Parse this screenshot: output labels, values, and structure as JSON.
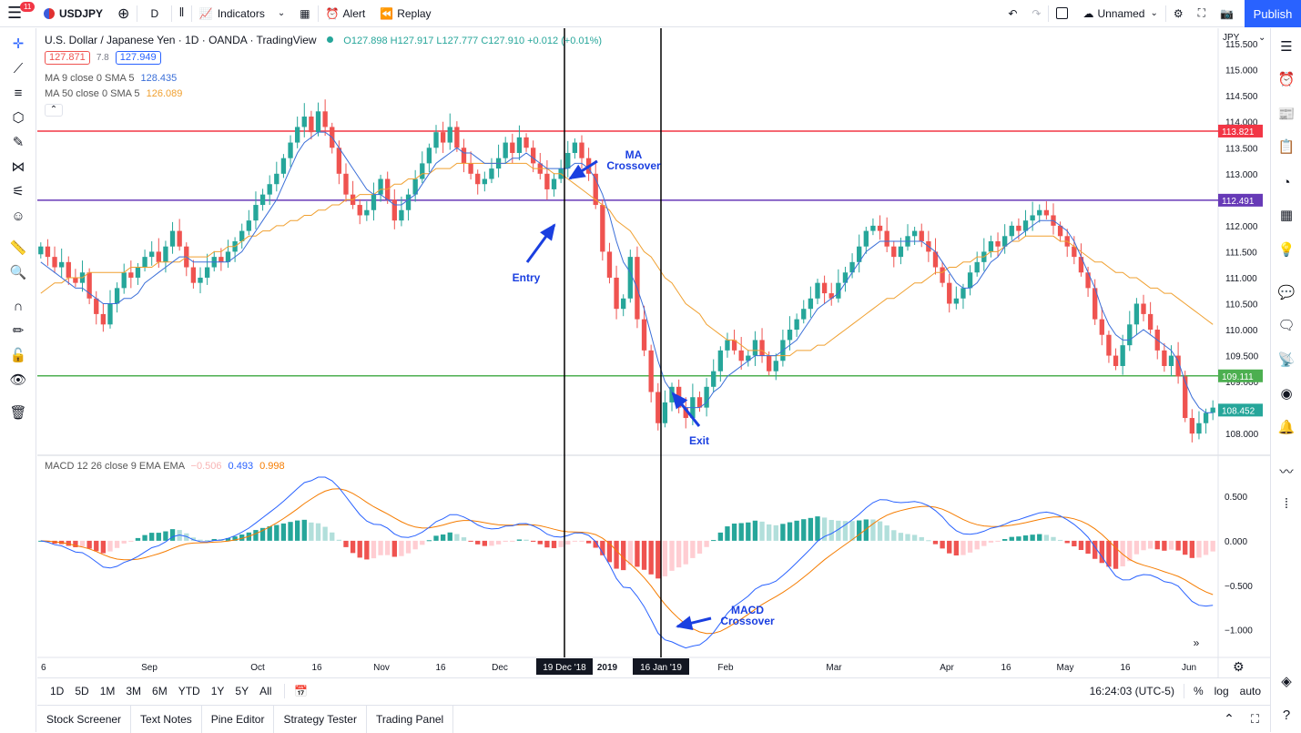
{
  "topbar": {
    "notif_count": "11",
    "symbol": "USDJPY",
    "interval": "D",
    "indicators": "Indicators",
    "alert": "Alert",
    "replay": "Replay",
    "layout_name": "Unnamed",
    "publish": "Publish"
  },
  "legend": {
    "title": "U.S. Dollar / Japanese Yen · 1D · OANDA · TradingView",
    "ohlc": "O127.898 H127.917 L127.777 C127.910 +0.012 (+0.01%)",
    "bid": "127.871",
    "spread": "7.8",
    "ask": "127.949",
    "ma9_label": "MA 9 close 0 SMA 5",
    "ma9_value": "128.435",
    "ma50_label": "MA 50 close 0 SMA 5",
    "ma50_value": "126.089",
    "macd_label": "MACD 12 26 close 9 EMA EMA",
    "macd_hist": "−0.506",
    "macd_value": "0.493",
    "macd_signal": "0.998"
  },
  "price_axis": {
    "currency": "JPY",
    "ticks": [
      "115.500",
      "115.000",
      "114.500",
      "114.000",
      "113.500",
      "113.000",
      "112.500",
      "112.000",
      "111.500",
      "111.000",
      "110.500",
      "110.000",
      "109.500",
      "109.000",
      "108.500",
      "108.000"
    ],
    "red_line": "113.821",
    "purple_line": "112.491",
    "green_line": "109.111",
    "last_price": "108.452"
  },
  "macd_axis": {
    "ticks": [
      "0.500",
      "0.000",
      "−0.500",
      "−1.000"
    ]
  },
  "time_axis": {
    "labels": [
      "6",
      "Sep",
      "Oct",
      "16",
      "Nov",
      "16",
      "Dec",
      "2019",
      "Feb",
      "Mar",
      "Apr",
      "16",
      "May",
      "16",
      "Jun"
    ],
    "marker1": "19 Dec '18",
    "marker2": "16 Jan '19"
  },
  "annotations": {
    "ma_crossover_line1": "MA",
    "ma_crossover_line2": "Crossover",
    "entry": "Entry",
    "exit": "Exit",
    "macd_crossover_line1": "MACD",
    "macd_crossover_line2": "Crossover"
  },
  "ranges": [
    "1D",
    "5D",
    "1M",
    "3M",
    "6M",
    "YTD",
    "1Y",
    "5Y",
    "All"
  ],
  "status": {
    "time": "16:24:03 (UTC-5)",
    "pct": "%",
    "log": "log",
    "auto": "auto"
  },
  "tabs": [
    "Stock Screener",
    "Text Notes",
    "Pine Editor",
    "Strategy Tester",
    "Trading Panel"
  ],
  "colors": {
    "up": "#26a69a",
    "down": "#ef5350",
    "ma9": "#3b6fd8",
    "ma50": "#f0a030",
    "red_line": "#f23645",
    "purple_line": "#673ab7",
    "green_line": "#4caf50",
    "accent": "#2962ff"
  },
  "chart_data": {
    "type": "candlestick",
    "price_range": [
      107.6,
      115.8
    ],
    "macd_range": [
      -1.3,
      0.95
    ],
    "closes": [
      111.6,
      111.4,
      111.2,
      111.3,
      111.0,
      110.9,
      111.1,
      110.6,
      110.3,
      110.1,
      110.5,
      110.8,
      111.1,
      111.0,
      111.2,
      111.4,
      111.5,
      111.3,
      111.6,
      111.9,
      111.6,
      111.2,
      110.9,
      111.0,
      111.2,
      111.4,
      111.3,
      111.5,
      111.7,
      111.9,
      112.1,
      112.4,
      112.6,
      112.8,
      113.0,
      113.3,
      113.6,
      113.9,
      114.1,
      113.8,
      114.2,
      113.9,
      113.5,
      113.0,
      112.6,
      112.4,
      112.2,
      112.3,
      112.6,
      112.9,
      112.5,
      112.1,
      112.3,
      112.6,
      112.9,
      113.2,
      113.5,
      113.8,
      113.6,
      113.9,
      113.5,
      113.2,
      113.0,
      112.8,
      112.9,
      113.1,
      113.3,
      113.6,
      113.4,
      113.7,
      113.5,
      113.2,
      113.0,
      112.7,
      112.9,
      113.1,
      113.4,
      113.6,
      113.3,
      113.0,
      112.4,
      111.5,
      111.0,
      110.4,
      110.6,
      111.4,
      110.2,
      109.6,
      108.8,
      108.2,
      108.6,
      108.9,
      108.5,
      108.3,
      108.7,
      108.5,
      108.9,
      109.2,
      109.6,
      109.8,
      109.6,
      109.4,
      109.5,
      109.8,
      109.5,
      109.2,
      109.4,
      109.8,
      110.0,
      110.2,
      110.4,
      110.6,
      110.9,
      110.7,
      110.6,
      110.9,
      111.1,
      111.3,
      111.6,
      111.9,
      112.0,
      111.9,
      111.6,
      111.4,
      111.6,
      111.8,
      111.9,
      111.7,
      111.5,
      111.2,
      110.9,
      110.5,
      110.6,
      110.8,
      111.1,
      111.3,
      111.5,
      111.7,
      111.6,
      111.8,
      112.0,
      111.9,
      112.1,
      112.2,
      112.3,
      112.2,
      112.0,
      111.8,
      111.6,
      111.4,
      111.1,
      110.8,
      110.2,
      109.9,
      109.5,
      109.3,
      109.7,
      110.1,
      110.5,
      110.3,
      110.0,
      109.6,
      109.3,
      109.5,
      109.1,
      108.3,
      108.0,
      108.2,
      108.4,
      108.5
    ],
    "ma9": [
      111.3,
      111.2,
      111.1,
      111.0,
      110.9,
      110.8,
      110.8,
      110.7,
      110.6,
      110.5,
      110.5,
      110.5,
      110.6,
      110.6,
      110.7,
      110.9,
      111.0,
      111.1,
      111.2,
      111.3,
      111.4,
      111.4,
      111.3,
      111.3,
      111.3,
      111.3,
      111.3,
      111.3,
      111.4,
      111.5,
      111.7,
      111.9,
      112.1,
      112.3,
      112.5,
      112.8,
      113.1,
      113.4,
      113.6,
      113.7,
      113.8,
      113.8,
      113.7,
      113.5,
      113.3,
      113.1,
      112.9,
      112.7,
      112.6,
      112.6,
      112.5,
      112.4,
      112.4,
      112.5,
      112.6,
      112.8,
      113.0,
      113.2,
      113.3,
      113.4,
      113.5,
      113.4,
      113.4,
      113.3,
      113.2,
      113.2,
      113.2,
      113.2,
      113.3,
      113.3,
      113.4,
      113.3,
      113.2,
      113.1,
      113.1,
      113.1,
      113.1,
      113.2,
      113.2,
      113.1,
      112.9,
      112.6,
      112.2,
      111.7,
      111.3,
      111.1,
      110.8,
      110.4,
      109.9,
      109.4,
      109.0,
      108.8,
      108.6,
      108.5,
      108.5,
      108.5,
      108.6,
      108.8,
      108.9,
      109.1,
      109.2,
      109.3,
      109.4,
      109.5,
      109.5,
      109.5,
      109.5,
      109.6,
      109.7,
      109.8,
      110.0,
      110.2,
      110.4,
      110.5,
      110.6,
      110.7,
      110.9,
      111.1,
      111.3,
      111.5,
      111.6,
      111.7,
      111.7,
      111.7,
      111.7,
      111.7,
      111.7,
      111.7,
      111.6,
      111.5,
      111.3,
      111.1,
      110.9,
      110.8,
      110.8,
      110.9,
      111.1,
      111.3,
      111.4,
      111.6,
      111.7,
      111.8,
      111.9,
      112.0,
      112.1,
      112.1,
      112.1,
      112.0,
      111.9,
      111.7,
      111.4,
      111.1,
      110.8,
      110.4,
      110.1,
      109.9,
      109.8,
      109.8,
      109.9,
      110.0,
      109.9,
      109.8,
      109.7,
      109.6,
      109.4,
      109.0,
      108.7,
      108.5,
      108.4,
      108.4
    ],
    "ma50": [
      110.7,
      110.8,
      110.9,
      110.9,
      111.0,
      111.0,
      111.0,
      111.1,
      111.1,
      111.1,
      111.1,
      111.1,
      111.1,
      111.2,
      111.2,
      111.2,
      111.2,
      111.3,
      111.3,
      111.3,
      111.3,
      111.4,
      111.4,
      111.4,
      111.4,
      111.5,
      111.5,
      111.6,
      111.6,
      111.7,
      111.8,
      111.8,
      111.9,
      111.9,
      112.0,
      112.0,
      112.1,
      112.1,
      112.2,
      112.2,
      112.3,
      112.3,
      112.4,
      112.4,
      112.5,
      112.5,
      112.6,
      112.6,
      112.6,
      112.7,
      112.7,
      112.8,
      112.8,
      112.9,
      112.9,
      113.0,
      113.0,
      113.1,
      113.1,
      113.1,
      113.2,
      113.2,
      113.2,
      113.2,
      113.2,
      113.2,
      113.2,
      113.2,
      113.2,
      113.2,
      113.2,
      113.1,
      113.1,
      113.1,
      113.0,
      113.0,
      112.9,
      112.8,
      112.7,
      112.6,
      112.5,
      112.4,
      112.3,
      112.1,
      112.0,
      111.9,
      111.7,
      111.5,
      111.4,
      111.2,
      111.0,
      110.9,
      110.7,
      110.5,
      110.4,
      110.3,
      110.1,
      110.0,
      109.9,
      109.8,
      109.8,
      109.7,
      109.6,
      109.6,
      109.6,
      109.5,
      109.5,
      109.5,
      109.5,
      109.6,
      109.6,
      109.6,
      109.7,
      109.7,
      109.8,
      109.9,
      110.0,
      110.1,
      110.2,
      110.3,
      110.4,
      110.5,
      110.6,
      110.6,
      110.7,
      110.8,
      110.9,
      110.9,
      111.0,
      111.1,
      111.1,
      111.2,
      111.2,
      111.3,
      111.3,
      111.4,
      111.4,
      111.5,
      111.5,
      111.6,
      111.7,
      111.7,
      111.8,
      111.8,
      111.8,
      111.8,
      111.8,
      111.7,
      111.7,
      111.6,
      111.5,
      111.4,
      111.3,
      111.3,
      111.2,
      111.1,
      111.1,
      111.0,
      111.0,
      110.9,
      110.8,
      110.8,
      110.7,
      110.7,
      110.6,
      110.5,
      110.4,
      110.3,
      110.2,
      110.1
    ]
  }
}
